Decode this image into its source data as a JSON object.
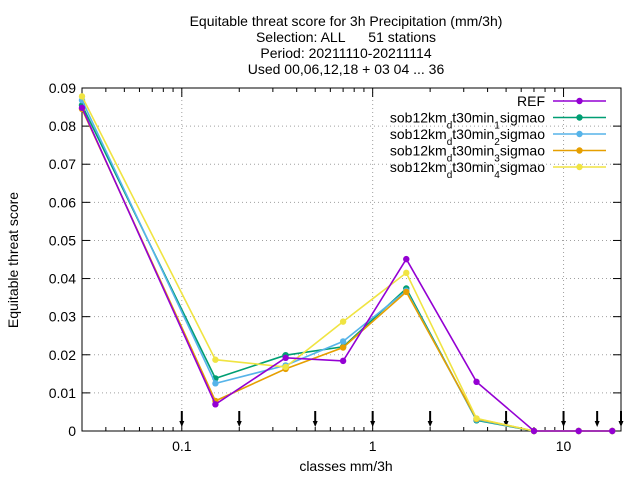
{
  "chart_data": {
    "type": "line",
    "title_lines": [
      "Equitable threat score  for 3h Precipitation (mm/3h)",
      "Selection: ALL      51 stations",
      "Period: 20211110-20211114",
      "Used 00,06,12,18 + 03 04 ... 36"
    ],
    "xlabel": "classes mm/3h",
    "ylabel": "Equitable threat score",
    "x_scale": "log",
    "xlim": [
      0.03,
      20
    ],
    "ylim": [
      0,
      0.09
    ],
    "x_tick_labels": [
      {
        "value": 0.1,
        "label": "0.1"
      },
      {
        "value": 1,
        "label": "1"
      },
      {
        "value": 10,
        "label": "10"
      }
    ],
    "y_tick_labels": [
      {
        "value": 0,
        "label": "0"
      },
      {
        "value": 0.01,
        "label": "0.01"
      },
      {
        "value": 0.02,
        "label": "0.02"
      },
      {
        "value": 0.03,
        "label": "0.03"
      },
      {
        "value": 0.04,
        "label": "0.04"
      },
      {
        "value": 0.05,
        "label": "0.05"
      },
      {
        "value": 0.06,
        "label": "0.06"
      },
      {
        "value": 0.07,
        "label": "0.07"
      },
      {
        "value": 0.08,
        "label": "0.08"
      },
      {
        "value": 0.09,
        "label": "0.09"
      }
    ],
    "grid": true,
    "legend_position": "top-right",
    "threshold_markers": [
      0.1,
      0.2,
      0.5,
      1,
      2,
      5,
      10,
      15,
      20
    ],
    "series": [
      {
        "name_parts": [
          [
            "sob12km",
            "n"
          ],
          [
            "d",
            "sub"
          ],
          [
            "t30min",
            "n"
          ],
          [
            "1",
            "sub"
          ],
          [
            "sigmao",
            "n"
          ]
        ],
        "color": "#009e73",
        "x": [
          0.03,
          0.15,
          0.35,
          0.7,
          1.5,
          3.5,
          7,
          12,
          18
        ],
        "y": [
          0.0855,
          0.0138,
          0.0199,
          0.0221,
          0.0374,
          0.0028,
          0,
          0,
          0
        ]
      },
      {
        "name_parts": [
          [
            "sob12km",
            "n"
          ],
          [
            "d",
            "sub"
          ],
          [
            "t30min",
            "n"
          ],
          [
            "2",
            "sub"
          ],
          [
            "sigmao",
            "n"
          ]
        ],
        "color": "#56b4e9",
        "x": [
          0.03,
          0.15,
          0.35,
          0.7,
          1.5,
          3.5,
          7,
          12,
          18
        ],
        "y": [
          0.0868,
          0.0125,
          0.0172,
          0.0235,
          0.0368,
          0.003,
          0,
          0,
          0
        ]
      },
      {
        "name_parts": [
          [
            "sob12km",
            "n"
          ],
          [
            "d",
            "sub"
          ],
          [
            "t30min",
            "n"
          ],
          [
            "3",
            "sub"
          ],
          [
            "sigmao",
            "n"
          ]
        ],
        "color": "#e69f00",
        "x": [
          0.03,
          0.15,
          0.35,
          0.7,
          1.5,
          3.5,
          7,
          12,
          18
        ],
        "y": [
          0.0845,
          0.0079,
          0.0163,
          0.0219,
          0.0365,
          0.0032,
          0,
          0,
          0
        ]
      },
      {
        "name_parts": [
          [
            "sob12km",
            "n"
          ],
          [
            "d",
            "sub"
          ],
          [
            "t30min",
            "n"
          ],
          [
            "4",
            "sub"
          ],
          [
            "sigmao",
            "n"
          ]
        ],
        "color": "#f0e442",
        "x": [
          0.03,
          0.15,
          0.35,
          0.7,
          1.5,
          3.5,
          7,
          12,
          18
        ],
        "y": [
          0.0878,
          0.0187,
          0.0168,
          0.0287,
          0.0415,
          0.0033,
          0,
          0,
          0
        ]
      },
      {
        "name_parts": [
          [
            "REF",
            "n"
          ]
        ],
        "color": "#9400d3",
        "x": [
          0.03,
          0.15,
          0.35,
          0.7,
          1.5,
          3.5,
          7,
          12,
          18
        ],
        "y": [
          0.0848,
          0.007,
          0.0192,
          0.0184,
          0.0451,
          0.0129,
          0,
          0,
          0
        ]
      }
    ],
    "legend_order": [
      4,
      0,
      1,
      2,
      3
    ]
  }
}
